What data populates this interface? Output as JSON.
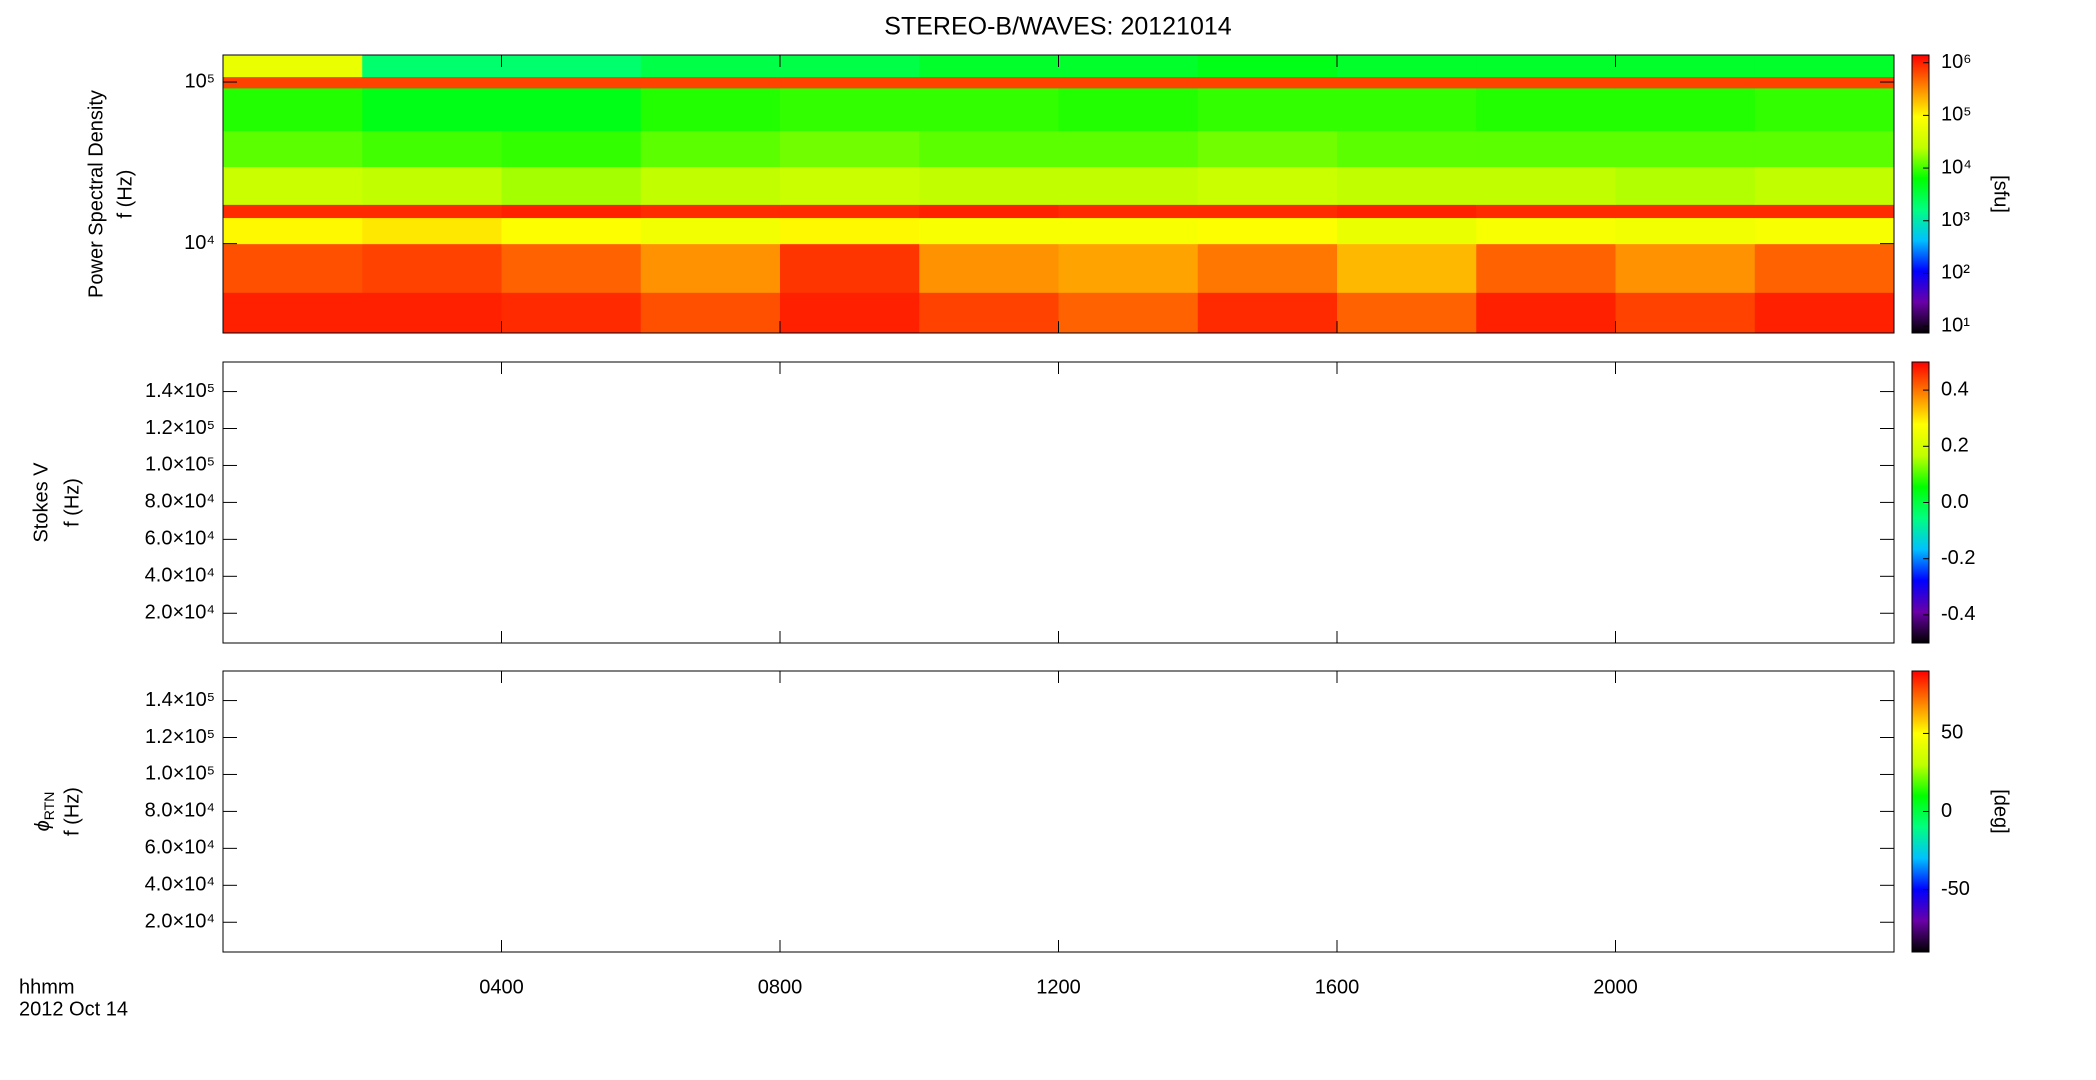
{
  "chart_data": [
    {
      "type": "heatmap",
      "title": "STEREO-B/WAVES: 20121014",
      "ylabel": [
        "Power Spectral Density",
        "f (Hz)"
      ],
      "xlim": [
        0,
        24
      ],
      "xticks": [
        4,
        8,
        12,
        16,
        20
      ],
      "yscale": "log",
      "ylim": [
        2800,
        147000
      ],
      "yticks": [
        {
          "value": 10000,
          "label": "10⁴"
        },
        {
          "value": 100000,
          "label": "10⁵"
        }
      ],
      "x_edges": [
        0,
        2,
        4,
        6,
        8,
        10,
        12,
        14,
        16,
        18,
        20,
        22,
        24
      ],
      "y_edges": [
        2800,
        5000,
        10000,
        14500,
        17500,
        30000,
        50000,
        92000,
        108000,
        147000
      ],
      "z": [
        [
          1000000,
          1000000,
          900000,
          600000,
          1000000,
          700000,
          500000,
          900000,
          500000,
          1000000,
          700000,
          1000000
        ],
        [
          600000,
          700000,
          500000,
          300000,
          800000,
          300000,
          250000,
          400000,
          200000,
          500000,
          300000,
          500000
        ],
        [
          100000,
          120000,
          90000,
          70000,
          100000,
          80000,
          80000,
          90000,
          60000,
          80000,
          70000,
          80000
        ],
        [
          900000,
          900000,
          1000000,
          900000,
          900000,
          1000000,
          900000,
          900000,
          1000000,
          900000,
          900000,
          900000
        ],
        [
          30000,
          25000,
          20000,
          25000,
          30000,
          25000,
          25000,
          30000,
          25000,
          25000,
          22000,
          25000
        ],
        [
          12000,
          10000,
          9000,
          12000,
          14000,
          12000,
          12000,
          14000,
          12000,
          12000,
          12000,
          12000
        ],
        [
          8000,
          5000,
          5000,
          8000,
          9000,
          9000,
          8000,
          9000,
          9000,
          8000,
          8000,
          9000
        ],
        [
          700000,
          700000,
          700000,
          700000,
          700000,
          700000,
          700000,
          700000,
          700000,
          700000,
          700000,
          700000
        ],
        [
          60000,
          2000,
          2000,
          3000,
          3000,
          4000,
          4000,
          5000,
          4000,
          4000,
          4000,
          4000
        ]
      ],
      "colorbar": {
        "label": "[sfu]",
        "scale": "log",
        "lim": [
          7.4,
          1400000
        ],
        "ticks": [
          {
            "value": 10,
            "label": "10¹"
          },
          {
            "value": 100,
            "label": "10²"
          },
          {
            "value": 1000,
            "label": "10³"
          },
          {
            "value": 10000,
            "label": "10⁴"
          },
          {
            "value": 100000,
            "label": "10⁵"
          },
          {
            "value": 1000000,
            "label": "10⁶"
          }
        ],
        "colormap": [
          "#000000",
          "#6a00a8",
          "#0000ff",
          "#00c0ff",
          "#00ff80",
          "#00ff00",
          "#c0ff00",
          "#ffff00",
          "#ff8000",
          "#ff0000"
        ]
      }
    },
    {
      "type": "heatmap",
      "ylabel": [
        "Stokes V",
        "f (Hz)"
      ],
      "xlim": [
        0,
        24
      ],
      "xticks": [
        4,
        8,
        12,
        16,
        20
      ],
      "yscale": "linear",
      "ylim": [
        3900,
        156000
      ],
      "yticks": [
        {
          "value": 20000,
          "label": "2.0×10⁴"
        },
        {
          "value": 40000,
          "label": "4.0×10⁴"
        },
        {
          "value": 60000,
          "label": "6.0×10⁴"
        },
        {
          "value": 80000,
          "label": "8.0×10⁴"
        },
        {
          "value": 100000,
          "label": "1.0×10⁵"
        },
        {
          "value": 120000,
          "label": "1.2×10⁵"
        },
        {
          "value": 140000,
          "label": "1.4×10⁵"
        }
      ],
      "colorbar": {
        "scale": "linear",
        "lim": [
          -0.5,
          0.5
        ],
        "ticks": [
          -0.4,
          -0.2,
          {
            "value": 0,
            "label": "0.0"
          },
          0.2,
          0.4
        ],
        "colormap": [
          "#000000",
          "#6a00a8",
          "#0000ff",
          "#00c0ff",
          "#00ff80",
          "#00ff00",
          "#c0ff00",
          "#ffff00",
          "#ff8000",
          "#ff0000"
        ]
      }
    },
    {
      "type": "heatmap",
      "ylabel_symbol": "ϕ",
      "ylabel_subscript": "RTN",
      "ylabel": [
        "f (Hz)"
      ],
      "x_label": "hhmm",
      "x_sublabel": "2012 Oct 14",
      "xlim": [
        0,
        24
      ],
      "xticks": [
        {
          "value": 4,
          "label": "0400"
        },
        {
          "value": 8,
          "label": "0800"
        },
        {
          "value": 12,
          "label": "1200"
        },
        {
          "value": 16,
          "label": "1600"
        },
        {
          "value": 20,
          "label": "2000"
        }
      ],
      "yscale": "linear",
      "ylim": [
        3900,
        156000
      ],
      "yticks": [
        {
          "value": 20000,
          "label": "2.0×10⁴"
        },
        {
          "value": 40000,
          "label": "4.0×10⁴"
        },
        {
          "value": 60000,
          "label": "6.0×10⁴"
        },
        {
          "value": 80000,
          "label": "8.0×10⁴"
        },
        {
          "value": 100000,
          "label": "1.0×10⁵"
        },
        {
          "value": 120000,
          "label": "1.2×10⁵"
        },
        {
          "value": 140000,
          "label": "1.4×10⁵"
        }
      ],
      "colorbar": {
        "label": "[deg]",
        "scale": "linear",
        "lim": [
          -90,
          90
        ],
        "ticks": [
          -50,
          0,
          50
        ],
        "colormap": [
          "#000000",
          "#6a00a8",
          "#0000ff",
          "#00c0ff",
          "#00ff80",
          "#00ff00",
          "#c0ff00",
          "#ffff00",
          "#ff8000",
          "#ff0000"
        ]
      }
    }
  ]
}
